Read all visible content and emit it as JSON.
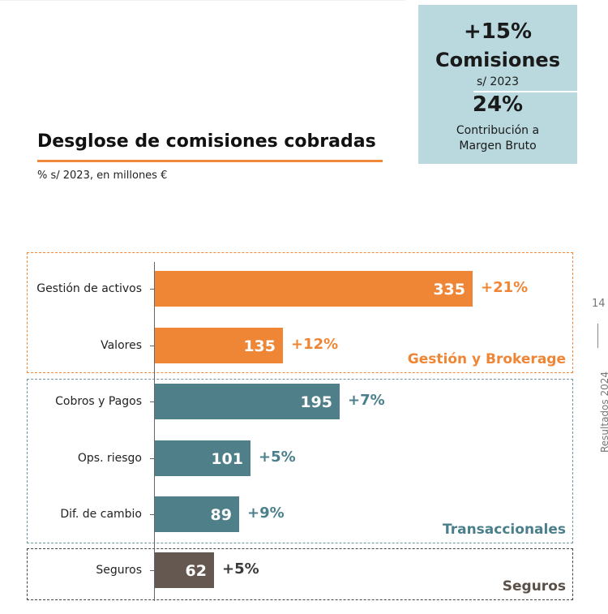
{
  "kpi": {
    "growth": "+15%",
    "label": "Comisiones",
    "base": "s/ 2023",
    "share": "24%",
    "share_desc_line1": "Contribución a",
    "share_desc_line2": "Margen Bruto",
    "bg_color": "#b9d9df"
  },
  "side": {
    "page": "14",
    "report": "Resultados 2024"
  },
  "chart_data": {
    "type": "bar",
    "orientation": "horizontal",
    "title": "Desglose de comisiones cobradas",
    "subtitle": "% s/ 2023, en millones €",
    "xlim": [
      0,
      400
    ],
    "categories": [
      "Gestión de activos",
      "Valores",
      "Cobros y Pagos",
      "Ops. riesgo",
      "Dif. de cambio",
      "Seguros"
    ],
    "values": [
      335,
      135,
      195,
      101,
      89,
      62
    ],
    "value_labels": [
      "335",
      "135",
      "195",
      "101",
      "89",
      "62"
    ],
    "growth": [
      "+21%",
      "+12%",
      "+7%",
      "+5%",
      "+9%",
      "+5%"
    ],
    "bar_colors": [
      "#ef8636",
      "#ef8636",
      "#4f8089",
      "#4f8089",
      "#4f8089",
      "#655850"
    ],
    "growth_colors": [
      "#ef8636",
      "#ef8636",
      "#4a7f8b",
      "#4a7f8b",
      "#4a7f8b",
      "#3a3a3a"
    ],
    "groups": [
      {
        "name": "Gestión y Brokerage",
        "members": [
          "Gestión de activos",
          "Valores"
        ],
        "color": "#ef8636"
      },
      {
        "name": "Transaccionales",
        "members": [
          "Cobros y Pagos",
          "Ops. riesgo",
          "Dif. de cambio"
        ],
        "color": "#4a7f8b"
      },
      {
        "name": "Seguros",
        "members": [
          "Seguros"
        ],
        "color": "#5b5048"
      }
    ]
  }
}
